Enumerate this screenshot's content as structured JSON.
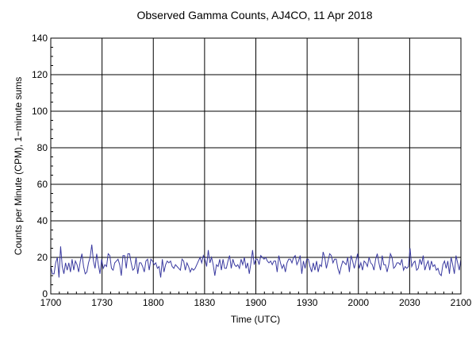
{
  "chart_data": {
    "type": "line",
    "title": "Observed Gamma Counts, AJ4CO, 11 Apr 2018",
    "xlabel": "Time (UTC)",
    "ylabel": "Counts per Minute (CPM), 1−minute sums",
    "x_tick_labels": [
      "1700",
      "1730",
      "1800",
      "1830",
      "1900",
      "1930",
      "2000",
      "2030",
      "2100"
    ],
    "y_ticks": [
      0,
      20,
      40,
      60,
      80,
      100,
      120,
      140
    ],
    "ylim": [
      0,
      140
    ],
    "x_range_minutes_after_1700": [
      0,
      240
    ],
    "grid": true,
    "line_color": "#3a3aa0",
    "series": [
      {
        "values": [
          15,
          11,
          11,
          17,
          20,
          9,
          26,
          15,
          11,
          17,
          13,
          17,
          12,
          19,
          13,
          18,
          16,
          12,
          18,
          22,
          15,
          11,
          12,
          17,
          20,
          27,
          18,
          14,
          22,
          16,
          11,
          19,
          14,
          16,
          15,
          22,
          21,
          14,
          13,
          17,
          18,
          19,
          16,
          10,
          21,
          21,
          14,
          22,
          22,
          17,
          13,
          14,
          20,
          11,
          17,
          17,
          15,
          12,
          18,
          19,
          13,
          19,
          18,
          16,
          17,
          14,
          15,
          9,
          19,
          12,
          16,
          18,
          17,
          18,
          15,
          14,
          16,
          15,
          14,
          13,
          19,
          18,
          13,
          17,
          15,
          12,
          14,
          13,
          14,
          16,
          18,
          20,
          17,
          21,
          19,
          15,
          24,
          17,
          20,
          16,
          10,
          16,
          15,
          19,
          13,
          19,
          14,
          14,
          18,
          21,
          14,
          19,
          16,
          15,
          16,
          14,
          19,
          16,
          20,
          14,
          17,
          11,
          17,
          24,
          16,
          19,
          19,
          16,
          21,
          20,
          19,
          20,
          18,
          17,
          18,
          16,
          18,
          18,
          12,
          21,
          17,
          14,
          16,
          12,
          17,
          19,
          19,
          17,
          20,
          21,
          16,
          18,
          21,
          11,
          18,
          14,
          19,
          19,
          15,
          12,
          17,
          13,
          18,
          12,
          16,
          15,
          23,
          20,
          14,
          18,
          22,
          21,
          17,
          19,
          19,
          14,
          11,
          15,
          18,
          17,
          16,
          20,
          12,
          21,
          18,
          14,
          18,
          22,
          14,
          17,
          13,
          18,
          17,
          15,
          20,
          17,
          16,
          13,
          19,
          22,
          17,
          13,
          21,
          16,
          16,
          12,
          16,
          22,
          20,
          14,
          15,
          17,
          17,
          16,
          19,
          13,
          15,
          14,
          15,
          25,
          15,
          17,
          18,
          13,
          14,
          19,
          16,
          21,
          13,
          16,
          18,
          13,
          18,
          15,
          16,
          13,
          14,
          11,
          10,
          16,
          18,
          14,
          18,
          11,
          20,
          16,
          11,
          21,
          17,
          13,
          19
        ]
      }
    ]
  }
}
